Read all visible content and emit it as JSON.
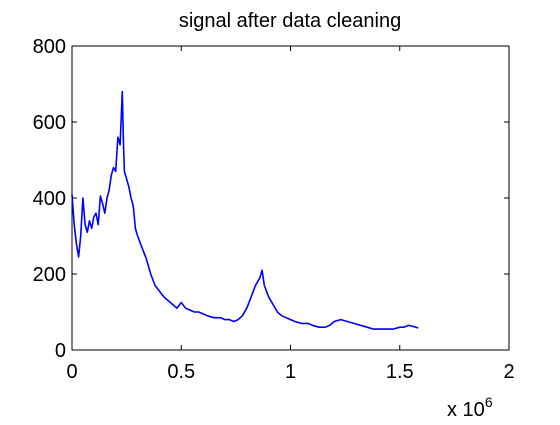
{
  "chart_data": {
    "type": "line",
    "title": "signal after data cleaning",
    "xlabel": "",
    "ylabel": "",
    "xlim": [
      0,
      2000000
    ],
    "ylim": [
      0,
      800
    ],
    "x_ticks": [
      0,
      500000,
      1000000,
      1500000,
      2000000
    ],
    "x_tick_labels": [
      "0",
      "0.5",
      "1",
      "1.5",
      "2"
    ],
    "x_exponent_label": "x 10",
    "x_exponent_power": "6",
    "y_ticks": [
      0,
      200,
      400,
      600,
      800
    ],
    "y_tick_labels": [
      "0",
      "200",
      "400",
      "600",
      "800"
    ],
    "grid": false,
    "legend": "none",
    "series": [
      {
        "color": "#0000ff",
        "x": [
          0,
          10000,
          20000,
          30000,
          40000,
          50000,
          60000,
          70000,
          80000,
          90000,
          100000,
          110000,
          120000,
          130000,
          140000,
          150000,
          160000,
          170000,
          180000,
          190000,
          200000,
          210000,
          220000,
          230000,
          235000,
          240000,
          250000,
          260000,
          270000,
          280000,
          290000,
          300000,
          320000,
          340000,
          360000,
          380000,
          400000,
          420000,
          440000,
          460000,
          480000,
          500000,
          520000,
          540000,
          560000,
          580000,
          600000,
          620000,
          650000,
          680000,
          700000,
          720000,
          740000,
          760000,
          780000,
          800000,
          820000,
          840000,
          860000,
          870000,
          880000,
          900000,
          920000,
          940000,
          960000,
          980000,
          1000000,
          1020000,
          1050000,
          1080000,
          1100000,
          1130000,
          1160000,
          1180000,
          1200000,
          1230000,
          1260000,
          1290000,
          1320000,
          1350000,
          1380000,
          1410000,
          1440000,
          1470000,
          1500000,
          1520000,
          1540000,
          1560000,
          1585000
        ],
        "y": [
          410,
          330,
          280,
          245,
          300,
          400,
          330,
          310,
          340,
          320,
          350,
          360,
          330,
          405,
          385,
          360,
          400,
          420,
          460,
          480,
          470,
          560,
          540,
          680,
          560,
          470,
          450,
          430,
          400,
          380,
          320,
          300,
          270,
          240,
          200,
          170,
          155,
          140,
          130,
          120,
          110,
          125,
          110,
          105,
          100,
          100,
          95,
          90,
          85,
          85,
          80,
          80,
          75,
          80,
          90,
          110,
          140,
          170,
          190,
          210,
          170,
          140,
          120,
          100,
          90,
          85,
          80,
          75,
          70,
          70,
          65,
          60,
          60,
          65,
          75,
          80,
          75,
          70,
          65,
          60,
          55,
          55,
          55,
          55,
          60,
          60,
          65,
          62,
          58
        ]
      }
    ]
  }
}
